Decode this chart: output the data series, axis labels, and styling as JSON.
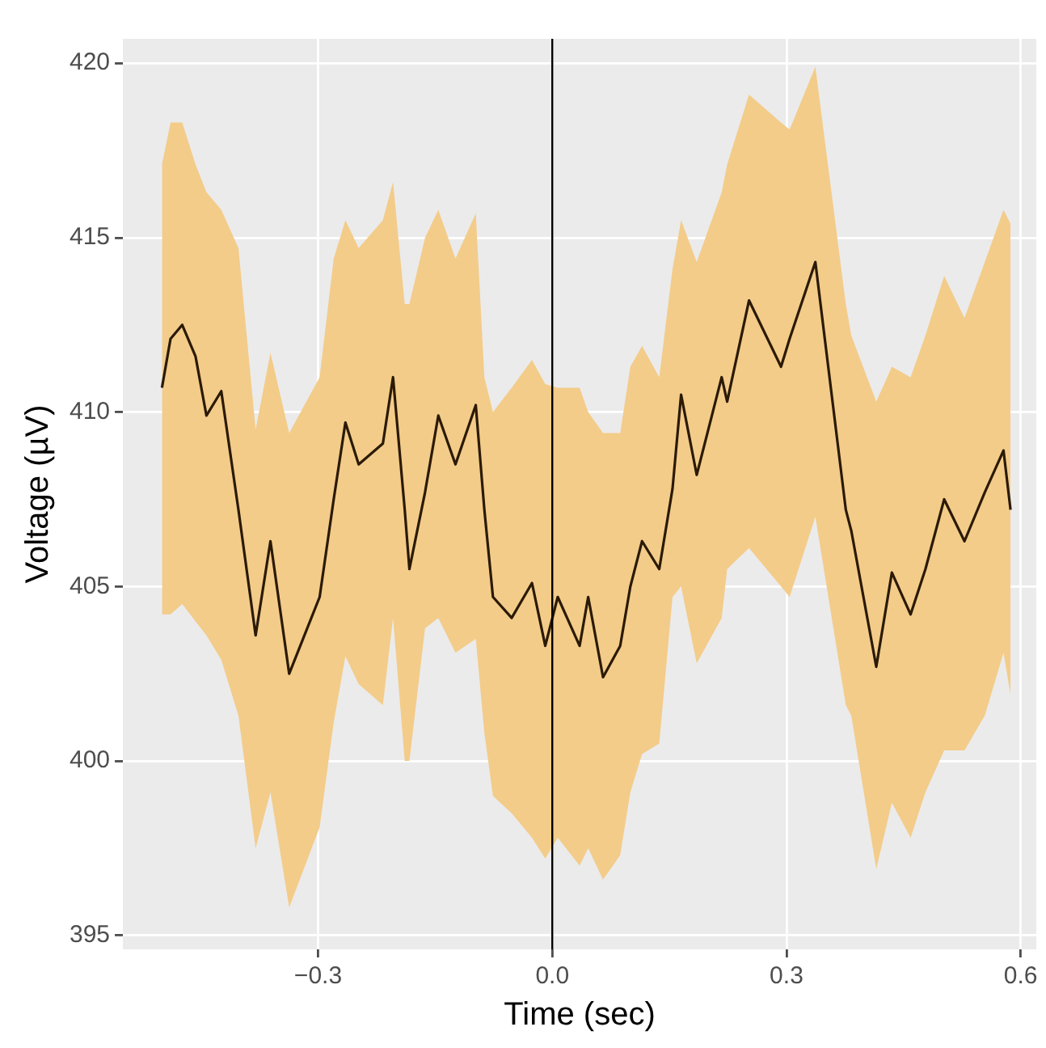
{
  "chart_data": {
    "type": "line",
    "xlabel": "Time (sec)",
    "ylabel": "Voltage (µV)",
    "xlim": [
      -0.55,
      0.62
    ],
    "ylim": [
      394.6,
      420.7
    ],
    "xticks": [
      {
        "value": -0.3,
        "label": "−0.3"
      },
      {
        "value": 0,
        "label": "0.0"
      },
      0.3,
      0.6
    ],
    "yticks": [
      395,
      400,
      405,
      410,
      415,
      420
    ],
    "grid": true,
    "legend": false,
    "marker": "none",
    "line_style": "solid",
    "ref_lines": [
      {
        "axis": "x",
        "value": 0,
        "color": "#000000"
      }
    ],
    "series": [
      {
        "color": "#2b1a05",
        "x": [
          -0.5,
          -0.489,
          -0.474,
          -0.457,
          -0.443,
          -0.424,
          -0.402,
          -0.38,
          -0.361,
          -0.337,
          -0.298,
          -0.28,
          -0.265,
          -0.248,
          -0.217,
          -0.204,
          -0.189,
          -0.183,
          -0.163,
          -0.146,
          -0.124,
          -0.098,
          -0.087,
          -0.076,
          -0.052,
          -0.026,
          -0.009,
          0.007,
          0.035,
          0.046,
          0.065,
          0.087,
          0.1,
          0.115,
          0.137,
          0.154,
          0.165,
          0.185,
          0.217,
          0.224,
          0.252,
          0.293,
          0.304,
          0.337,
          0.376,
          0.383,
          0.415,
          0.435,
          0.459,
          0.478,
          0.502,
          0.528,
          0.554,
          0.578,
          0.587
        ],
        "values": [
          410.7,
          412.1,
          412.5,
          411.6,
          409.9,
          410.6,
          407.2,
          403.6,
          406.3,
          402.5,
          404.7,
          407.5,
          409.7,
          408.5,
          409.1,
          411.0,
          407.2,
          405.5,
          407.7,
          409.9,
          408.5,
          410.2,
          407.2,
          404.7,
          404.1,
          405.1,
          403.3,
          404.7,
          403.3,
          404.7,
          402.4,
          403.3,
          405.0,
          406.3,
          405.5,
          407.8,
          410.5,
          408.2,
          411.0,
          410.3,
          413.2,
          411.3,
          412.1,
          414.3,
          407.2,
          406.6,
          402.7,
          405.4,
          404.2,
          405.5,
          407.5,
          406.3,
          407.7,
          408.9,
          407.2
        ],
        "upper": [
          417.1,
          418.3,
          418.3,
          417.1,
          416.3,
          415.8,
          414.7,
          409.5,
          411.7,
          409.4,
          411.0,
          414.4,
          415.5,
          414.7,
          415.5,
          416.6,
          413.1,
          413.1,
          415.0,
          415.8,
          414.4,
          415.7,
          411.0,
          410.0,
          410.7,
          411.5,
          410.8,
          410.7,
          410.7,
          410.0,
          409.4,
          409.4,
          411.3,
          411.9,
          411.0,
          414.1,
          415.5,
          414.3,
          416.3,
          417.1,
          419.1,
          418.3,
          418.1,
          419.9,
          413.1,
          412.2,
          410.3,
          411.3,
          411.0,
          412.2,
          413.9,
          412.7,
          414.3,
          415.8,
          415.4
        ],
        "lower": [
          404.2,
          404.2,
          404.5,
          404.0,
          403.6,
          402.9,
          401.3,
          397.5,
          399.1,
          395.8,
          398.1,
          401.1,
          403.0,
          402.2,
          401.6,
          404.1,
          400.0,
          400.0,
          403.8,
          404.1,
          403.1,
          403.5,
          400.8,
          399.0,
          398.5,
          397.8,
          397.2,
          397.8,
          397.0,
          397.5,
          396.6,
          397.3,
          399.1,
          400.2,
          400.5,
          404.7,
          405.0,
          402.8,
          404.1,
          405.5,
          406.1,
          405.0,
          404.7,
          407.0,
          401.6,
          401.3,
          396.9,
          398.8,
          397.8,
          399.1,
          400.3,
          400.3,
          401.3,
          403.1,
          401.9
        ]
      }
    ]
  }
}
